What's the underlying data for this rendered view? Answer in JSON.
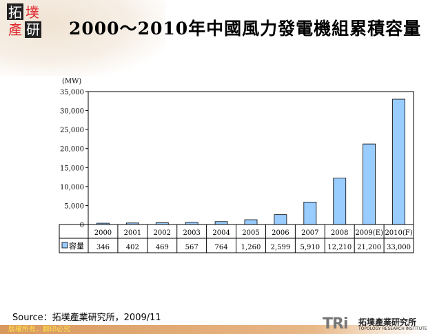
{
  "logo": {
    "chars": [
      "拓",
      "墣",
      "產",
      "研"
    ]
  },
  "title": "2000～2010年中國風力發電機組累積容量",
  "chart_data": {
    "type": "bar",
    "title": "2000～2010年中國風力發電機組累積容量",
    "unit_label": "(MW)",
    "categories": [
      "2000",
      "2001",
      "2002",
      "2003",
      "2004",
      "2005",
      "2006",
      "2007",
      "2008",
      "2009(E)",
      "2010(F)"
    ],
    "series": [
      {
        "name": "容量",
        "values": [
          346,
          402,
          469,
          567,
          764,
          1260,
          2599,
          5910,
          12210,
          21200,
          33000
        ]
      }
    ],
    "value_labels": [
      "346",
      "402",
      "469",
      "567",
      "764",
      "1,260",
      "2,599",
      "5,910",
      "12,210",
      "21,200",
      "33,000"
    ],
    "yticks": [
      "0",
      "5,000",
      "10,000",
      "15,000",
      "20,000",
      "25,000",
      "30,000",
      "35,000"
    ],
    "ylim": [
      0,
      35000
    ],
    "bar_color": "#99ccff",
    "grid": false,
    "legend": "data-table"
  },
  "source": "Source：拓墣產業研究所，2009/11",
  "footer": {
    "copyright": "版權所有．翻印必究",
    "brand": "TRi",
    "brand_cn": "拓墣產業研究所",
    "brand_en": "TOPOLOGY RESEARCH INSTITUTE"
  }
}
